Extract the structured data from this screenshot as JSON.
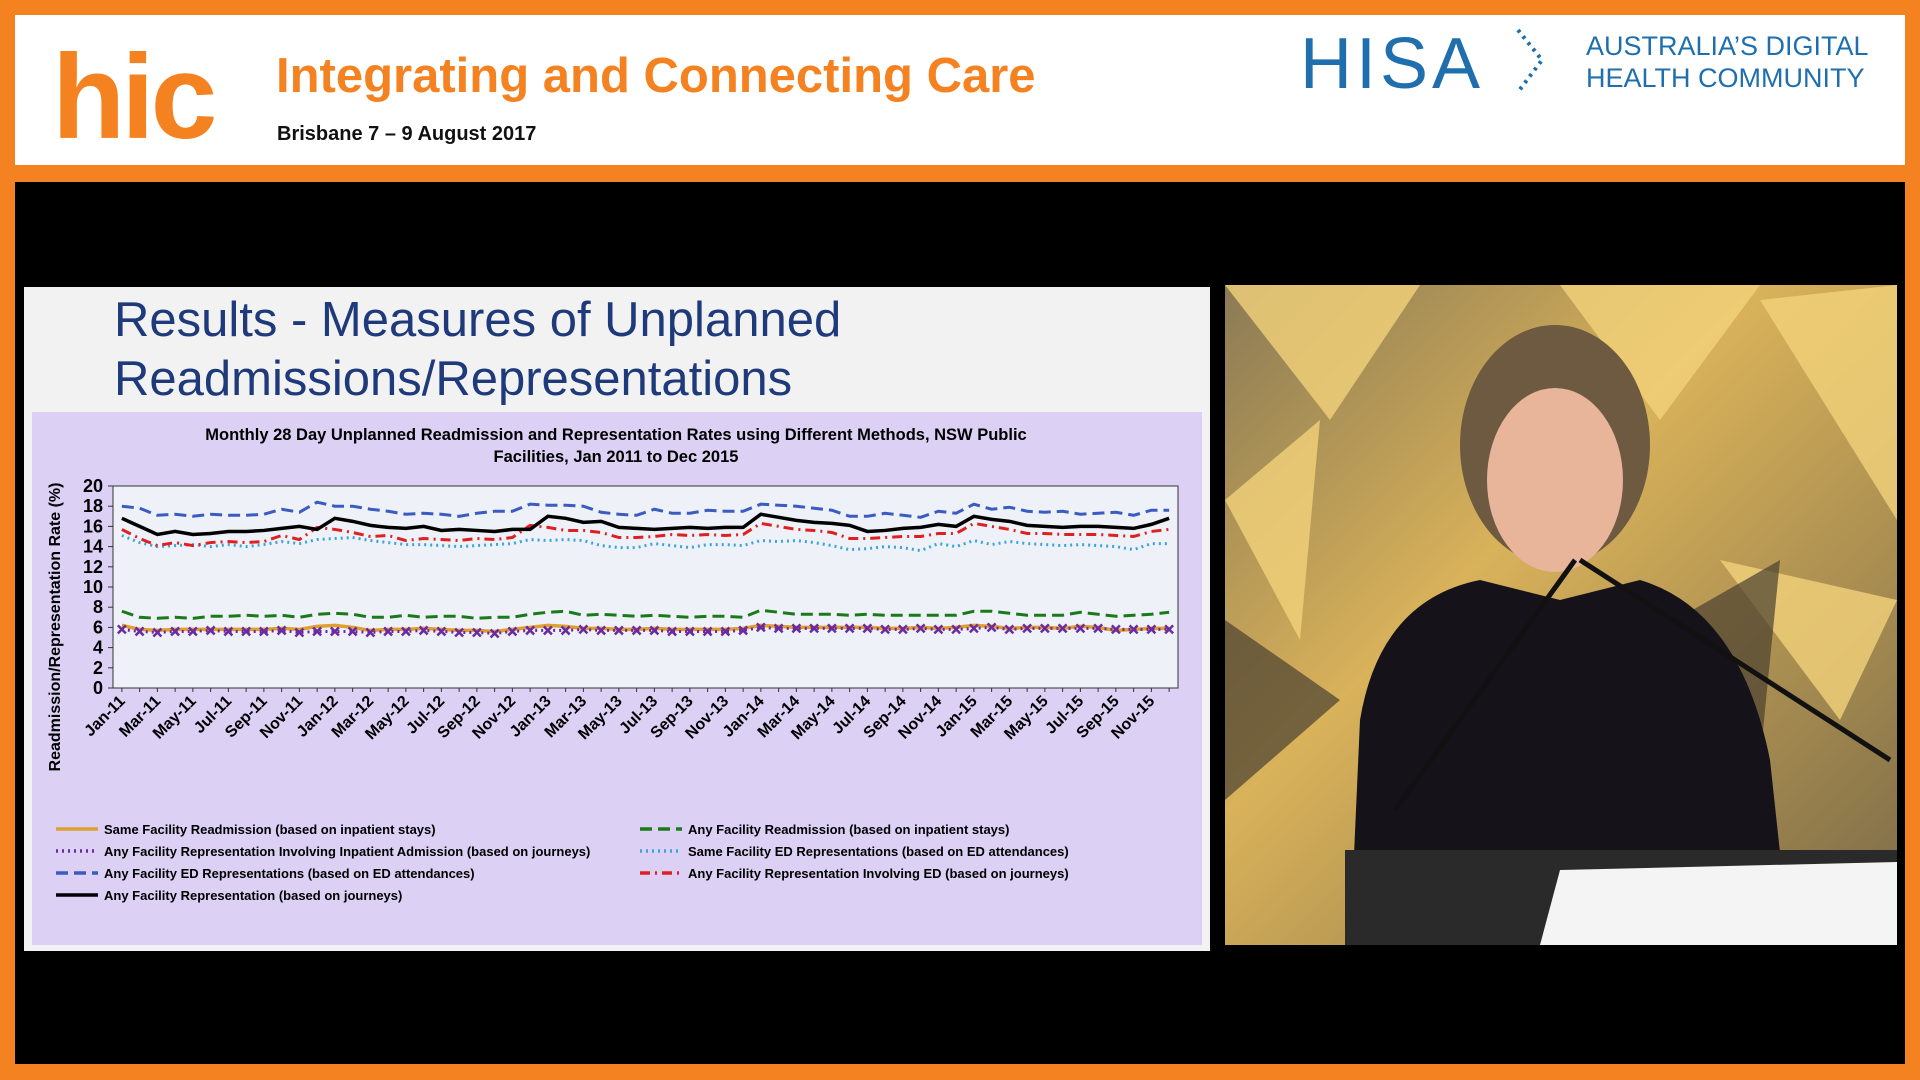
{
  "header": {
    "logo": "hic",
    "title": "Integrating and Connecting Care",
    "subtitle": "Brisbane 7 – 9 August 2017",
    "brand": "HISA",
    "tagline": [
      "AUSTRALIA’S DIGITAL",
      "HEALTH COMMUNITY"
    ]
  },
  "slide": {
    "title": [
      "Results - Measures of Unplanned",
      "Readmissions/Representations"
    ]
  },
  "chart_data": {
    "type": "line",
    "title": [
      "Monthly 28 Day Unplanned Readmission and Representation Rates using Different Methods, NSW Public",
      "Facilities, Jan 2011 to Dec 2015"
    ],
    "y_label": "Readmission/Representation Rate (%)",
    "categories": [
      "Jan-11",
      null,
      "Mar-11",
      null,
      "May-11",
      null,
      "Jul-11",
      null,
      "Sep-11",
      null,
      "Nov-11",
      null,
      "Jan-12",
      null,
      "Mar-12",
      null,
      "May-12",
      null,
      "Jul-12",
      null,
      "Sep-12",
      null,
      "Nov-12",
      null,
      "Jan-13",
      null,
      "Mar-13",
      null,
      "May-13",
      null,
      "Jul-13",
      null,
      "Sep-13",
      null,
      "Nov-13",
      null,
      "Jan-14",
      null,
      "Mar-14",
      null,
      "May-14",
      null,
      "Jul-14",
      null,
      "Sep-14",
      null,
      "Nov-14",
      null,
      "Jan-15",
      null,
      "Mar-15",
      null,
      "May-15",
      null,
      "Jul-15",
      null,
      "Sep-15",
      null,
      "Nov-15",
      null
    ],
    "ylim": [
      0,
      20
    ],
    "yticks": [
      0,
      2,
      4,
      6,
      8,
      10,
      12,
      14,
      16,
      18,
      20
    ],
    "series": [
      {
        "name": "Same Facility Readmission (based on inpatient stays)",
        "color": "#e0a030",
        "style": "solid",
        "values": [
          6.2,
          5.8,
          5.7,
          5.8,
          5.8,
          5.8,
          5.8,
          5.8,
          5.8,
          5.9,
          5.8,
          6.1,
          6.2,
          6.0,
          5.7,
          5.8,
          5.8,
          5.9,
          5.8,
          5.7,
          5.7,
          5.6,
          5.8,
          6.0,
          6.2,
          6.1,
          5.9,
          5.9,
          5.8,
          5.8,
          5.9,
          5.8,
          5.8,
          5.8,
          5.8,
          5.9,
          6.2,
          6.1,
          6.0,
          6.0,
          6.0,
          6.0,
          6.0,
          5.9,
          5.9,
          6.0,
          5.9,
          6.0,
          6.2,
          6.1,
          5.9,
          6.0,
          6.0,
          5.9,
          6.1,
          6.0,
          5.7,
          5.8,
          5.9,
          5.9
        ]
      },
      {
        "name": "Any Facility Readmission (based on inpatient stays)",
        "color": "#1a7a1a",
        "style": "dashed",
        "values": [
          7.6,
          7.0,
          6.9,
          7.0,
          6.9,
          7.1,
          7.1,
          7.2,
          7.1,
          7.2,
          7.0,
          7.3,
          7.4,
          7.3,
          7.0,
          7.0,
          7.2,
          7.0,
          7.1,
          7.1,
          6.9,
          7.0,
          7.0,
          7.3,
          7.5,
          7.6,
          7.2,
          7.3,
          7.2,
          7.1,
          7.2,
          7.1,
          7.0,
          7.1,
          7.1,
          7.0,
          7.7,
          7.5,
          7.3,
          7.3,
          7.3,
          7.2,
          7.3,
          7.2,
          7.2,
          7.2,
          7.2,
          7.2,
          7.6,
          7.6,
          7.4,
          7.2,
          7.2,
          7.2,
          7.5,
          7.3,
          7.1,
          7.2,
          7.3,
          7.5
        ]
      },
      {
        "name": "Any Facility Representation Involving Inpatient Admission (based on journeys)",
        "color": "#6a2aa0",
        "style": "dotted",
        "markers": true,
        "values": [
          5.8,
          5.6,
          5.5,
          5.6,
          5.6,
          5.7,
          5.6,
          5.6,
          5.6,
          5.7,
          5.5,
          5.6,
          5.6,
          5.6,
          5.5,
          5.6,
          5.6,
          5.7,
          5.6,
          5.5,
          5.5,
          5.4,
          5.6,
          5.7,
          5.7,
          5.7,
          5.8,
          5.7,
          5.7,
          5.7,
          5.7,
          5.6,
          5.6,
          5.6,
          5.6,
          5.7,
          6.0,
          5.9,
          5.9,
          5.9,
          5.9,
          5.9,
          5.9,
          5.8,
          5.8,
          5.9,
          5.8,
          5.8,
          5.9,
          6.0,
          5.8,
          5.9,
          5.9,
          5.9,
          5.9,
          5.9,
          5.8,
          5.8,
          5.8,
          5.8
        ]
      },
      {
        "name": "Same Facility ED Representations (based on ED attendances)",
        "color": "#3aa6d8",
        "style": "dotted",
        "values": [
          15.1,
          14.4,
          14.0,
          14.1,
          14.2,
          14.0,
          14.2,
          14.0,
          14.2,
          14.5,
          14.3,
          14.7,
          14.8,
          14.9,
          14.6,
          14.4,
          14.2,
          14.2,
          14.1,
          14.0,
          14.1,
          14.2,
          14.3,
          14.7,
          14.6,
          14.7,
          14.6,
          14.1,
          13.9,
          13.9,
          14.3,
          14.1,
          13.9,
          14.2,
          14.2,
          14.1,
          14.6,
          14.5,
          14.6,
          14.4,
          14.1,
          13.7,
          13.8,
          14.0,
          13.9,
          13.6,
          14.3,
          14.0,
          14.6,
          14.2,
          14.5,
          14.3,
          14.2,
          14.1,
          14.2,
          14.1,
          14.0,
          13.7,
          14.3,
          14.3
        ]
      },
      {
        "name": "Any Facility ED Representations  (based on ED attendances)",
        "color": "#3a5cc0",
        "style": "dashed",
        "values": [
          18.0,
          17.8,
          17.1,
          17.2,
          17.0,
          17.2,
          17.1,
          17.1,
          17.2,
          17.7,
          17.4,
          18.4,
          18.0,
          18.0,
          17.7,
          17.5,
          17.2,
          17.3,
          17.2,
          17.0,
          17.3,
          17.5,
          17.5,
          18.2,
          18.1,
          18.1,
          18.0,
          17.4,
          17.2,
          17.1,
          17.7,
          17.3,
          17.3,
          17.6,
          17.5,
          17.5,
          18.2,
          18.1,
          18.0,
          17.8,
          17.6,
          17.0,
          17.0,
          17.3,
          17.1,
          16.9,
          17.5,
          17.3,
          18.2,
          17.7,
          17.9,
          17.5,
          17.4,
          17.5,
          17.2,
          17.3,
          17.4,
          17.1,
          17.6,
          17.6
        ]
      },
      {
        "name": "Any Facility Representation Involving ED  (based on journeys)",
        "color": "#e02020",
        "style": "dashdot",
        "values": [
          15.7,
          14.8,
          14.1,
          14.4,
          14.1,
          14.4,
          14.5,
          14.4,
          14.5,
          15.1,
          14.7,
          15.9,
          15.7,
          15.4,
          15.0,
          15.1,
          14.6,
          14.8,
          14.7,
          14.6,
          14.8,
          14.7,
          14.9,
          16.1,
          15.9,
          15.6,
          15.6,
          15.4,
          14.9,
          14.9,
          15.0,
          15.2,
          15.1,
          15.2,
          15.1,
          15.2,
          16.3,
          16.0,
          15.7,
          15.6,
          15.4,
          14.8,
          14.8,
          14.9,
          15.0,
          15.0,
          15.3,
          15.3,
          16.3,
          16.0,
          15.7,
          15.3,
          15.3,
          15.2,
          15.2,
          15.2,
          15.1,
          15.0,
          15.5,
          15.7
        ]
      },
      {
        "name": "Any Facility Representation (based on journeys)",
        "color": "#000000",
        "style": "solid",
        "values": [
          16.8,
          16.0,
          15.2,
          15.5,
          15.2,
          15.3,
          15.5,
          15.5,
          15.6,
          15.8,
          16.0,
          15.7,
          16.8,
          16.5,
          16.1,
          15.9,
          15.8,
          16.0,
          15.6,
          15.7,
          15.6,
          15.5,
          15.7,
          15.7,
          17.0,
          16.8,
          16.4,
          16.5,
          15.9,
          15.8,
          15.7,
          15.8,
          15.9,
          15.8,
          15.9,
          15.9,
          17.2,
          16.9,
          16.6,
          16.4,
          16.3,
          16.1,
          15.5,
          15.6,
          15.8,
          15.9,
          16.2,
          16.0,
          17.0,
          16.7,
          16.5,
          16.1,
          16.0,
          15.9,
          16.0,
          16.0,
          15.9,
          15.8,
          16.2,
          16.8
        ]
      }
    ]
  }
}
